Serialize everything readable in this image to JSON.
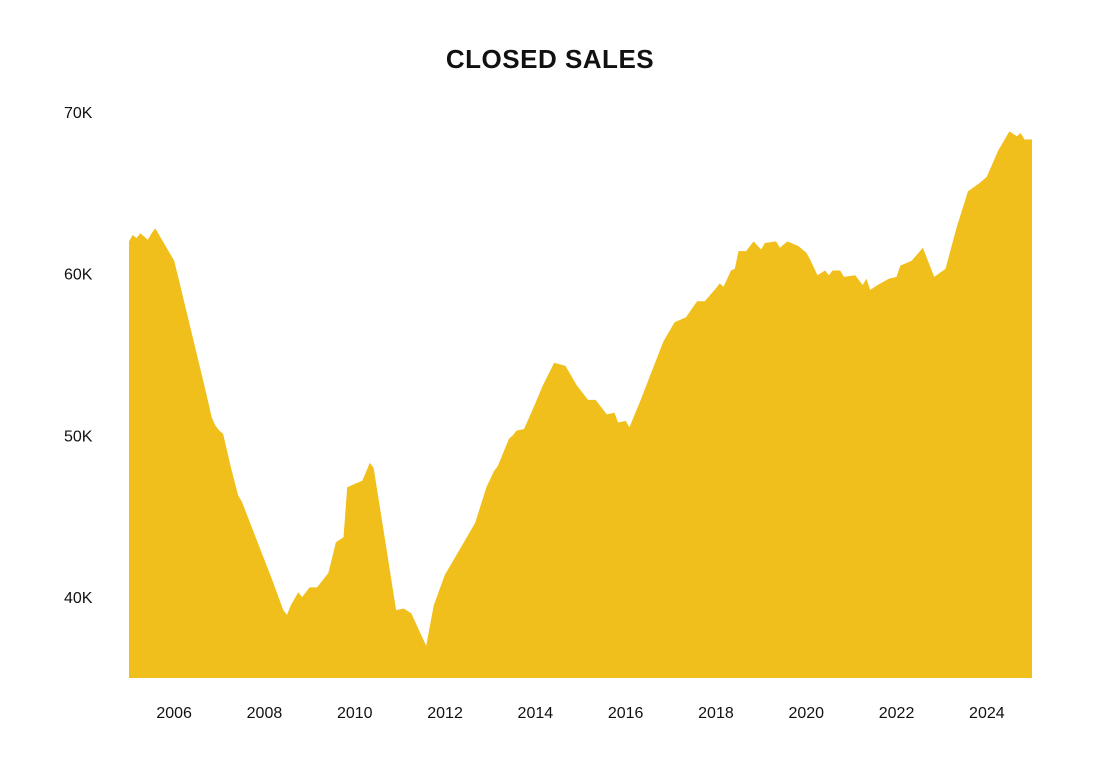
{
  "chart_data": {
    "type": "area",
    "title": "CLOSED SALES",
    "xlabel": "",
    "ylabel": "",
    "series": [
      {
        "color": "#F0BF1B",
        "points": [
          [
            "2005-01",
            62000
          ],
          [
            "2005-02",
            62400
          ],
          [
            "2005-03",
            62200
          ],
          [
            "2005-04",
            62500
          ],
          [
            "2005-05",
            62300
          ],
          [
            "2005-06",
            62100
          ],
          [
            "2005-07",
            62500
          ],
          [
            "2005-08",
            62800
          ],
          [
            "2005-09",
            62400
          ],
          [
            "2005-10",
            62000
          ],
          [
            "2005-11",
            61600
          ],
          [
            "2005-12",
            61200
          ],
          [
            "2006-01",
            60800
          ],
          [
            "2006-03",
            58900
          ],
          [
            "2006-06",
            56000
          ],
          [
            "2006-09",
            53100
          ],
          [
            "2006-11",
            51100
          ],
          [
            "2006-12",
            50600
          ],
          [
            "2007-01",
            50300
          ],
          [
            "2007-02",
            50100
          ],
          [
            "2007-04",
            48100
          ],
          [
            "2007-06",
            46300
          ],
          [
            "2007-07",
            45900
          ],
          [
            "2007-09",
            44700
          ],
          [
            "2007-12",
            42900
          ],
          [
            "2008-03",
            41100
          ],
          [
            "2008-06",
            39200
          ],
          [
            "2008-07",
            38900
          ],
          [
            "2008-08",
            39500
          ],
          [
            "2008-10",
            40300
          ],
          [
            "2008-11",
            40000
          ],
          [
            "2009-01",
            40600
          ],
          [
            "2009-03",
            40600
          ],
          [
            "2009-06",
            41500
          ],
          [
            "2009-08",
            43400
          ],
          [
            "2009-10",
            43700
          ],
          [
            "2009-11",
            46800
          ],
          [
            "2010-01",
            47000
          ],
          [
            "2010-03",
            47200
          ],
          [
            "2010-05",
            48300
          ],
          [
            "2010-06",
            48000
          ],
          [
            "2010-09",
            43600
          ],
          [
            "2010-12",
            39200
          ],
          [
            "2011-02",
            39300
          ],
          [
            "2011-04",
            39000
          ],
          [
            "2011-08",
            37000
          ],
          [
            "2011-10",
            39500
          ],
          [
            "2012-01",
            41400
          ],
          [
            "2012-03",
            42200
          ],
          [
            "2012-06",
            43400
          ],
          [
            "2012-09",
            44600
          ],
          [
            "2012-12",
            46800
          ],
          [
            "2013-02",
            47800
          ],
          [
            "2013-03",
            48100
          ],
          [
            "2013-06",
            49800
          ],
          [
            "2013-07",
            50000
          ],
          [
            "2013-08",
            50300
          ],
          [
            "2013-10",
            50400
          ],
          [
            "2014-01",
            52000
          ],
          [
            "2014-03",
            53100
          ],
          [
            "2014-06",
            54500
          ],
          [
            "2014-09",
            54300
          ],
          [
            "2014-12",
            53100
          ],
          [
            "2015-03",
            52200
          ],
          [
            "2015-05",
            52200
          ],
          [
            "2015-08",
            51300
          ],
          [
            "2015-10",
            51400
          ],
          [
            "2015-11",
            50800
          ],
          [
            "2016-01",
            50900
          ],
          [
            "2016-02",
            50500
          ],
          [
            "2016-05",
            52200
          ],
          [
            "2016-08",
            54000
          ],
          [
            "2016-11",
            55800
          ],
          [
            "2017-02",
            57000
          ],
          [
            "2017-05",
            57300
          ],
          [
            "2017-08",
            58300
          ],
          [
            "2017-10",
            58300
          ],
          [
            "2018-01",
            59100
          ],
          [
            "2018-02",
            59400
          ],
          [
            "2018-03",
            59200
          ],
          [
            "2018-05",
            60200
          ],
          [
            "2018-06",
            60300
          ],
          [
            "2018-07",
            61400
          ],
          [
            "2018-09",
            61400
          ],
          [
            "2018-11",
            62000
          ],
          [
            "2019-01",
            61500
          ],
          [
            "2019-02",
            61900
          ],
          [
            "2019-05",
            62000
          ],
          [
            "2019-06",
            61600
          ],
          [
            "2019-08",
            62000
          ],
          [
            "2019-11",
            61700
          ],
          [
            "2020-01",
            61300
          ],
          [
            "2020-02",
            60900
          ],
          [
            "2020-04",
            59900
          ],
          [
            "2020-06",
            60200
          ],
          [
            "2020-07",
            59900
          ],
          [
            "2020-08",
            60200
          ],
          [
            "2020-10",
            60200
          ],
          [
            "2020-11",
            59800
          ],
          [
            "2021-02",
            59900
          ],
          [
            "2021-04",
            59300
          ],
          [
            "2021-05",
            59700
          ],
          [
            "2021-06",
            59000
          ],
          [
            "2021-08",
            59300
          ],
          [
            "2021-11",
            59700
          ],
          [
            "2022-01",
            59800
          ],
          [
            "2022-02",
            60500
          ],
          [
            "2022-05",
            60800
          ],
          [
            "2022-08",
            61600
          ],
          [
            "2022-11",
            59800
          ],
          [
            "2023-02",
            60300
          ],
          [
            "2023-05",
            62900
          ],
          [
            "2023-08",
            65100
          ],
          [
            "2023-11",
            65600
          ],
          [
            "2024-01",
            66000
          ],
          [
            "2024-04",
            67600
          ],
          [
            "2024-07",
            68800
          ],
          [
            "2024-09",
            68500
          ],
          [
            "2024-10",
            68700
          ],
          [
            "2024-11",
            68300
          ]
        ]
      }
    ],
    "x_ticks": [
      "2006",
      "2008",
      "2010",
      "2012",
      "2014",
      "2016",
      "2018",
      "2020",
      "2022",
      "2024"
    ],
    "y_ticks": [
      {
        "value": 40000,
        "label": "40K"
      },
      {
        "value": 50000,
        "label": "50K"
      },
      {
        "value": 60000,
        "label": "60K"
      },
      {
        "value": 70000,
        "label": "70K"
      }
    ],
    "xlim": [
      "2005-01",
      "2025-01"
    ],
    "ylim": [
      35000,
      70000
    ],
    "grid": false,
    "legend": "none"
  }
}
